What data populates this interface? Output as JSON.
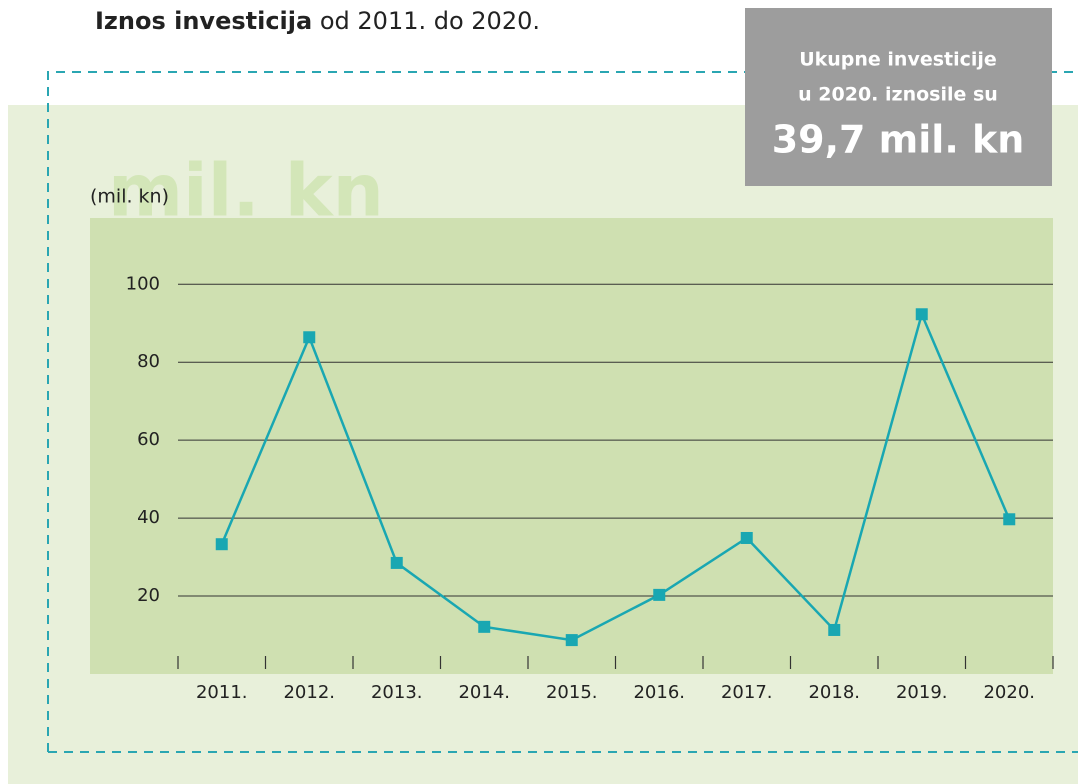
{
  "chart_data": {
    "type": "line",
    "title": [
      "Iznos investicija",
      "od 2011. do 2020."
    ],
    "watermark": "mil. kn",
    "y_label": "(mil. kn)",
    "annotation": [
      "Ukupne  investicije",
      "u 2020. iznosile su",
      "39,7 mil. kn"
    ],
    "categories": [
      "2011.",
      "2012.",
      "2013.",
      "2014.",
      "2015.",
      "2016.",
      "2017.",
      "2018.",
      "2019.",
      "2020."
    ],
    "series": [
      {
        "name": "Investicije",
        "color": "#19a7b2",
        "values": [
          33.3,
          86.4,
          28.5,
          12.1,
          8.7,
          20.3,
          34.9,
          11.3,
          92.3,
          39.7
        ]
      }
    ],
    "ylim": [
      0,
      117
    ],
    "yticks": [
      20,
      40,
      60,
      80,
      100
    ],
    "grid": true
  }
}
